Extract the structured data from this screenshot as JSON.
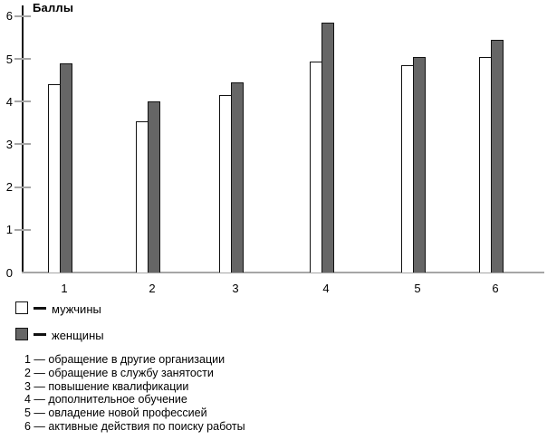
{
  "chart_data": {
    "type": "bar",
    "title": "Баллы",
    "ylabel": "Баллы",
    "xlabel": "",
    "ylim": [
      0,
      6
    ],
    "yticks": [
      0,
      1,
      2,
      3,
      4,
      5,
      6
    ],
    "categories": [
      "1",
      "2",
      "3",
      "4",
      "5",
      "6"
    ],
    "series": [
      {
        "name": "мужчины",
        "color": "#ffffff",
        "values": [
          4.4,
          3.55,
          4.15,
          4.95,
          4.85,
          5.05
        ]
      },
      {
        "name": "женщины",
        "color": "#666666",
        "values": [
          4.9,
          4.0,
          4.45,
          5.85,
          5.05,
          5.45
        ]
      }
    ],
    "grid": false,
    "legend_position": "bottom-left"
  },
  "legend": {
    "items": [
      {
        "swatch": "white-square",
        "label": "мужчины"
      },
      {
        "swatch": "gray-square",
        "label": "женщины"
      }
    ]
  },
  "notes": [
    "1 — обращение в другие организации",
    "2 — обращение в службу занятости",
    "3 — повышение квалификации",
    "4 — дополнительное обучение",
    "5 — овладение новой профессией",
    "6 — активные действия по поиску работы"
  ],
  "colors": {
    "men_bar": "#ffffff",
    "women_bar": "#666666",
    "bar_border": "#1a1a1a",
    "axis": "#000000",
    "baseline": "#a6a6a6",
    "tick": "#a6a6a6",
    "text": "#000000"
  }
}
